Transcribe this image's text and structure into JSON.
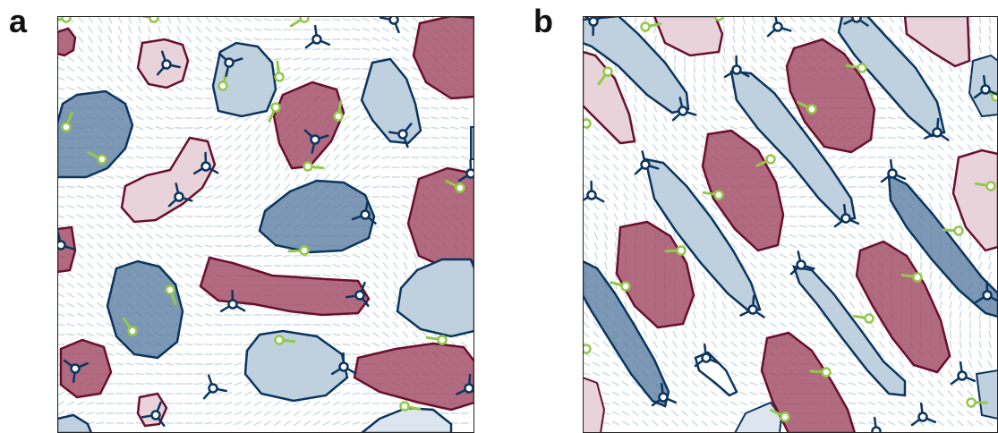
{
  "figure": {
    "panels": [
      {
        "id": "a",
        "label": "a"
      },
      {
        "id": "b",
        "label": "b"
      }
    ]
  },
  "colors": {
    "negative_fill": "#5b7ea2",
    "negative_stroke": "#0b355f",
    "positive_fill": "#a35069",
    "positive_stroke": "#6a0f2d",
    "defect_plus": "#94c84a",
    "defect_minus": "#0b355f",
    "director_field": "#c7d7e0"
  },
  "icons": {
    "plus_half_defect": "comet-marker-icon",
    "minus_half_defect": "trefoil-marker-icon"
  }
}
